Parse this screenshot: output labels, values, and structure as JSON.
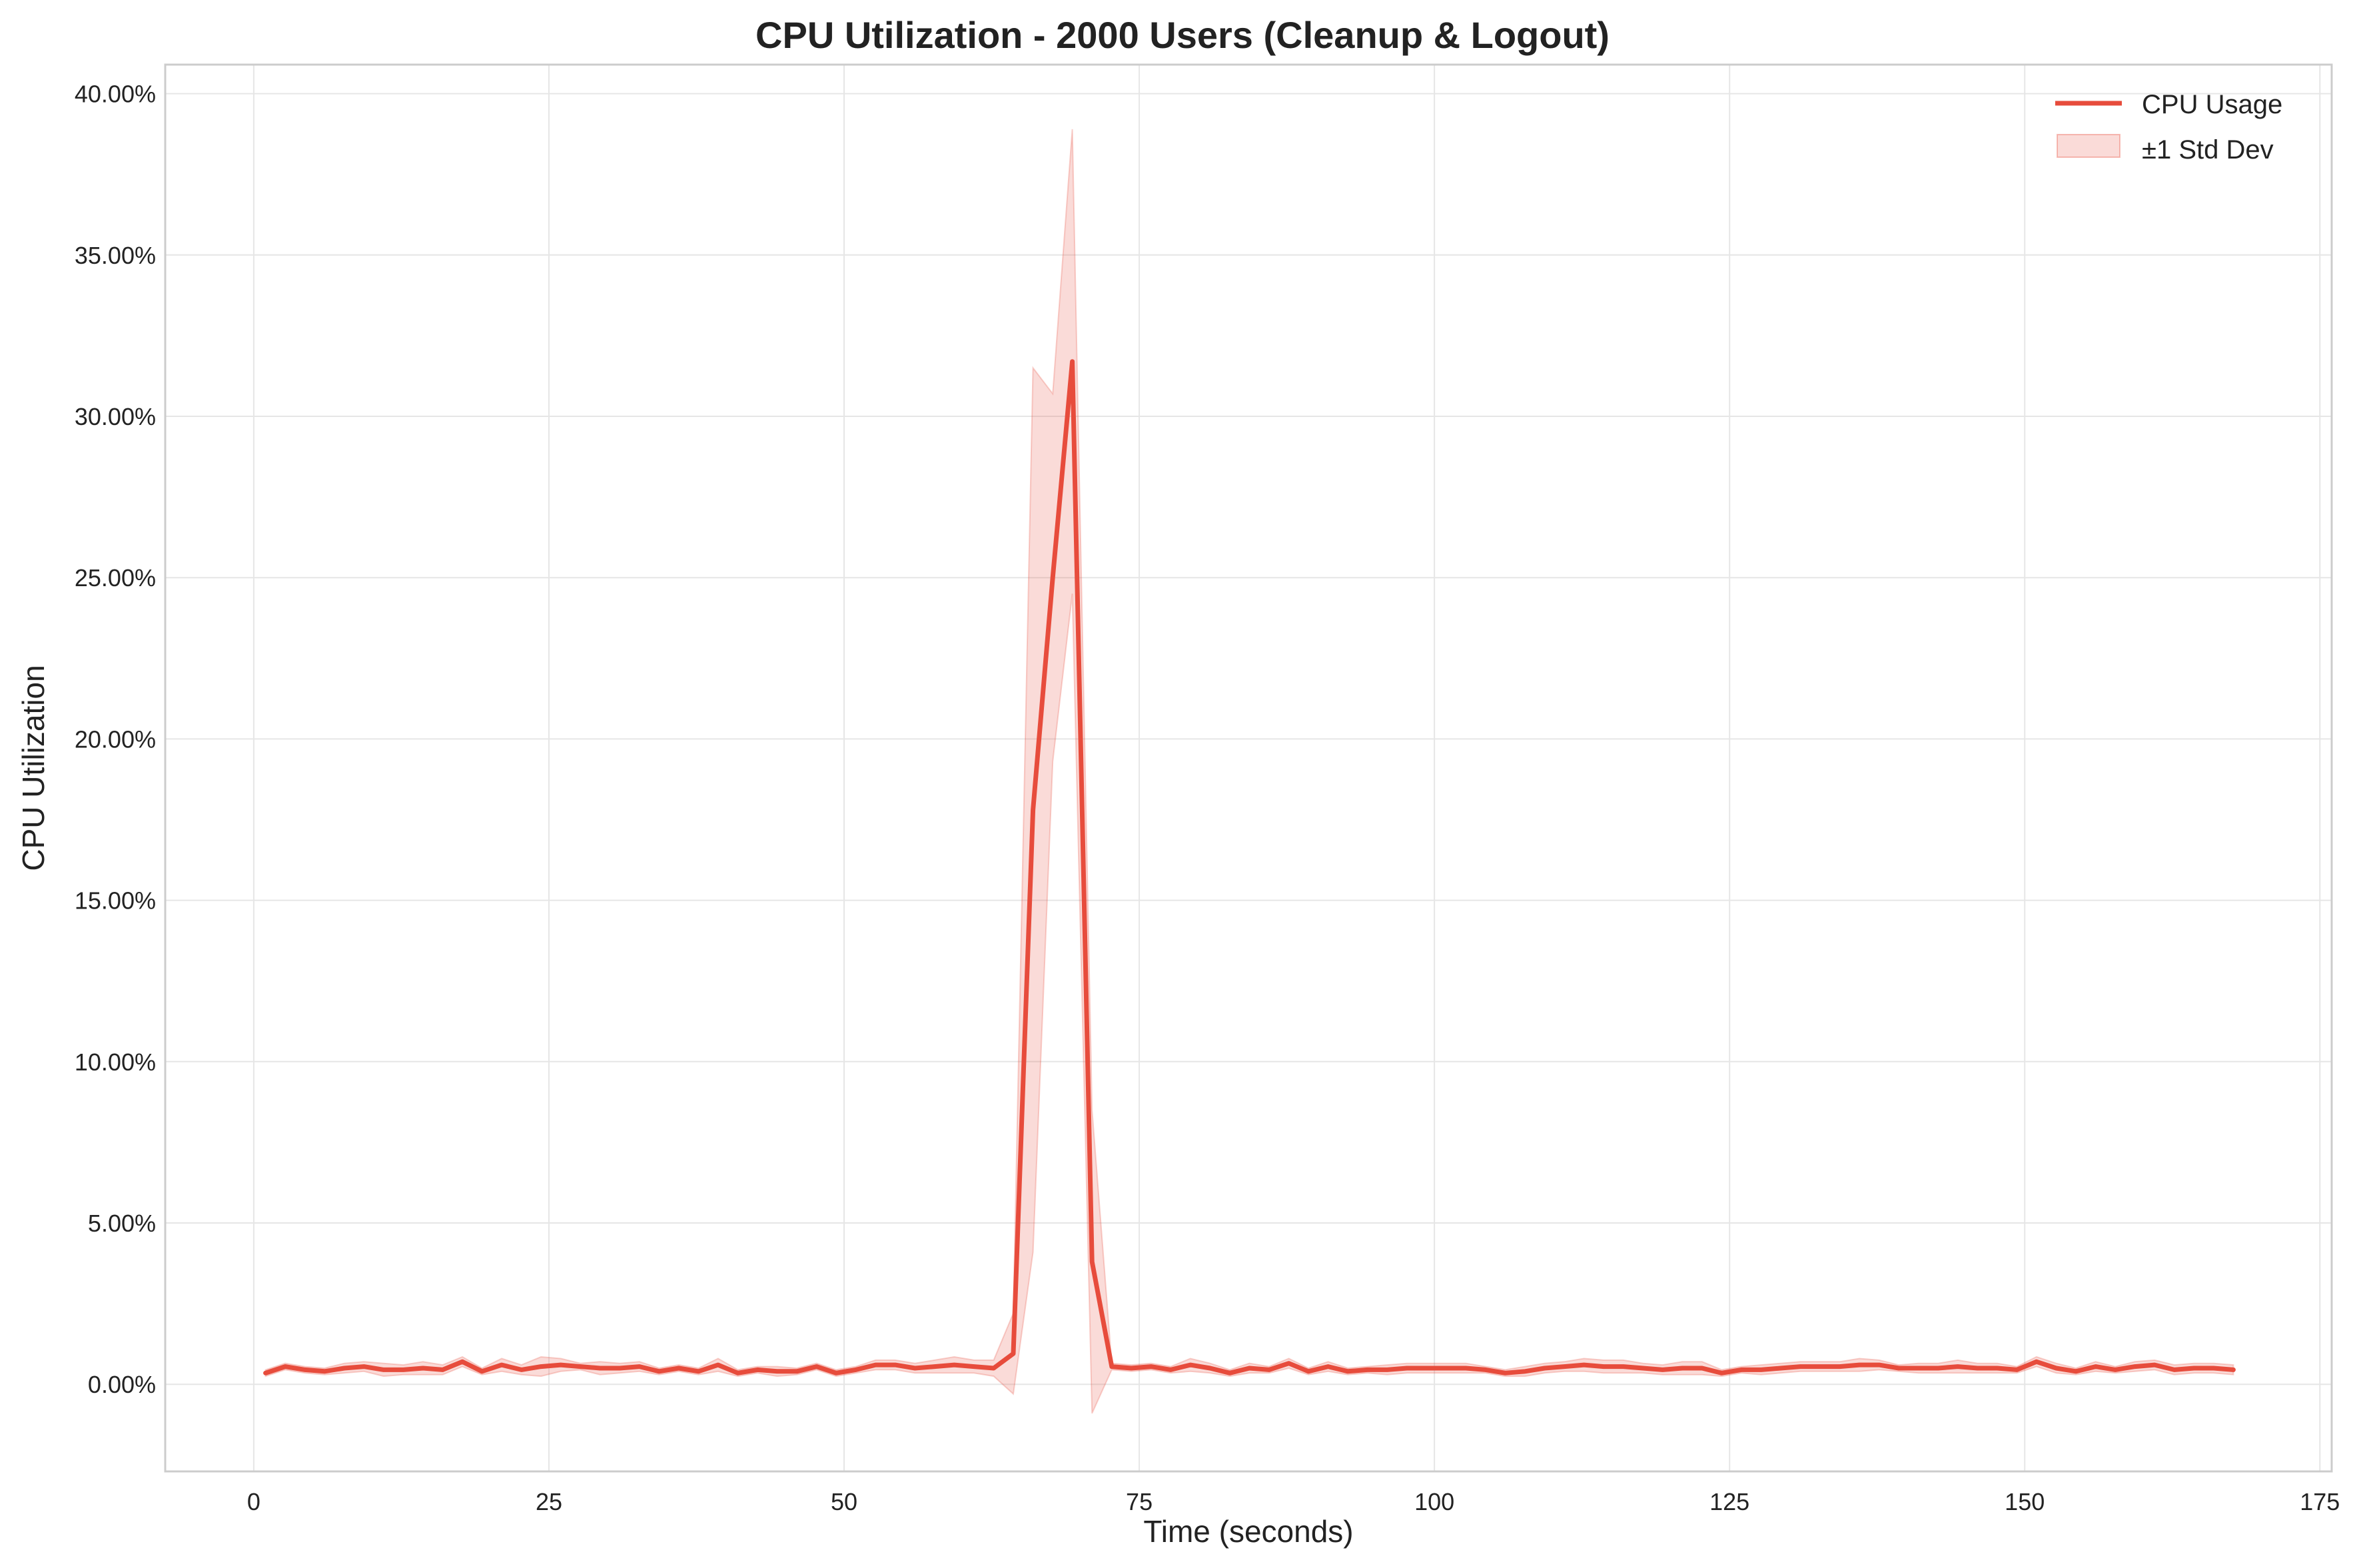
{
  "chart_data": {
    "type": "line",
    "title": "CPU Utilization - 2000 Users (Cleanup & Logout)",
    "xlabel": "Time (seconds)",
    "ylabel": "CPU Utilization",
    "xlim": [
      -7.5,
      176
    ],
    "ylim": [
      -2.7,
      40.9
    ],
    "x_ticks": [
      0,
      25,
      50,
      75,
      100,
      125,
      150,
      175
    ],
    "x_tick_labels": [
      "0",
      "25",
      "50",
      "75",
      "100",
      "125",
      "150",
      "175"
    ],
    "y_ticks": [
      0,
      5,
      10,
      15,
      20,
      25,
      30,
      35,
      40
    ],
    "y_tick_labels": [
      "0.00%",
      "5.00%",
      "10.00%",
      "15.00%",
      "20.00%",
      "25.00%",
      "30.00%",
      "35.00%",
      "40.00%"
    ],
    "grid": true,
    "legend_position": "top-right",
    "series": [
      {
        "name": "CPU Usage",
        "color": "#e74c3c",
        "x": [
          1,
          2.67,
          4.33,
          6,
          7.67,
          9.33,
          11,
          12.67,
          14.33,
          16,
          17.67,
          19.33,
          21,
          22.67,
          24.33,
          26,
          27.67,
          29.33,
          31,
          32.67,
          34.33,
          36,
          37.67,
          39.33,
          41,
          42.67,
          44.33,
          46,
          47.67,
          49.33,
          51,
          52.67,
          54.33,
          56,
          57.67,
          59.33,
          61,
          62.67,
          64.33,
          66,
          67.67,
          69.33,
          71,
          72.67,
          74.33,
          76,
          77.67,
          79.33,
          81,
          82.67,
          84.33,
          86,
          87.67,
          89.33,
          91,
          92.67,
          94.33,
          96,
          97.67,
          99.33,
          101,
          102.67,
          104.33,
          106,
          107.67,
          109.33,
          111,
          112.67,
          114.33,
          116,
          117.67,
          119.33,
          121,
          122.67,
          124.33,
          126,
          127.67,
          129.33,
          131,
          132.67,
          134.33,
          136,
          137.67,
          139.33,
          141,
          142.67,
          144.33,
          146,
          147.67,
          149.33,
          151,
          152.67,
          154.33,
          156,
          157.67,
          159.33,
          161,
          162.67,
          164.33,
          166,
          167.67
        ],
        "values": [
          0.35,
          0.55,
          0.45,
          0.4,
          0.5,
          0.55,
          0.45,
          0.45,
          0.5,
          0.45,
          0.7,
          0.4,
          0.6,
          0.45,
          0.55,
          0.6,
          0.55,
          0.5,
          0.5,
          0.55,
          0.4,
          0.5,
          0.4,
          0.6,
          0.35,
          0.45,
          0.4,
          0.4,
          0.55,
          0.35,
          0.45,
          0.6,
          0.6,
          0.5,
          0.55,
          0.6,
          0.55,
          0.5,
          0.95,
          17.8,
          25.0,
          31.7,
          3.8,
          0.55,
          0.5,
          0.55,
          0.45,
          0.6,
          0.5,
          0.35,
          0.5,
          0.45,
          0.65,
          0.4,
          0.55,
          0.4,
          0.45,
          0.45,
          0.5,
          0.5,
          0.5,
          0.5,
          0.45,
          0.35,
          0.4,
          0.5,
          0.55,
          0.6,
          0.55,
          0.55,
          0.5,
          0.45,
          0.5,
          0.5,
          0.35,
          0.45,
          0.45,
          0.5,
          0.55,
          0.55,
          0.55,
          0.6,
          0.6,
          0.5,
          0.5,
          0.5,
          0.55,
          0.5,
          0.5,
          0.45,
          0.7,
          0.5,
          0.4,
          0.55,
          0.45,
          0.55,
          0.6,
          0.45,
          0.5,
          0.5,
          0.45
        ],
        "std_dev": [
          0.1,
          0.1,
          0.1,
          0.1,
          0.15,
          0.15,
          0.2,
          0.15,
          0.2,
          0.15,
          0.15,
          0.1,
          0.2,
          0.15,
          0.3,
          0.2,
          0.1,
          0.2,
          0.15,
          0.15,
          0.1,
          0.1,
          0.1,
          0.2,
          0.1,
          0.1,
          0.15,
          0.1,
          0.1,
          0.1,
          0.1,
          0.15,
          0.15,
          0.15,
          0.2,
          0.25,
          0.2,
          0.25,
          1.25,
          13.7,
          5.7,
          7.2,
          4.7,
          0.1,
          0.1,
          0.1,
          0.1,
          0.2,
          0.15,
          0.1,
          0.15,
          0.1,
          0.15,
          0.1,
          0.15,
          0.1,
          0.1,
          0.15,
          0.15,
          0.15,
          0.15,
          0.15,
          0.1,
          0.1,
          0.15,
          0.15,
          0.15,
          0.2,
          0.2,
          0.2,
          0.15,
          0.15,
          0.2,
          0.2,
          0.1,
          0.1,
          0.15,
          0.15,
          0.15,
          0.15,
          0.15,
          0.2,
          0.15,
          0.1,
          0.15,
          0.15,
          0.2,
          0.15,
          0.15,
          0.1,
          0.15,
          0.15,
          0.1,
          0.15,
          0.1,
          0.15,
          0.15,
          0.15,
          0.15,
          0.15,
          0.15
        ]
      }
    ],
    "band": {
      "name": "±1 Std Dev",
      "color": "#e74c3c",
      "opacity": 0.2
    }
  }
}
